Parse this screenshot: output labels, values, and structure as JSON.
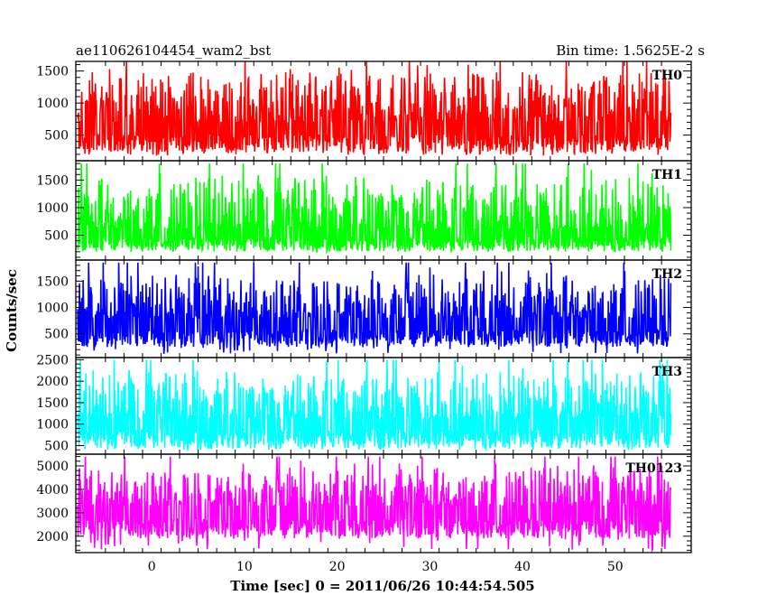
{
  "chart_data": {
    "type": "line",
    "title_left": "ae110626104454_wam2_bst",
    "title_right": "Bin time: 1.5625E-2 s",
    "xlabel": "Time [sec] 0 = 2011/06/26 10:44:54.505",
    "ylabel": "Counts/sec",
    "xlim": [
      -8.2,
      58.2
    ],
    "xticks": [
      0,
      10,
      20,
      30,
      40,
      50
    ],
    "bin_time_s": 0.015625,
    "data_range": [
      -8.0,
      56.0
    ],
    "panels": [
      {
        "name": "TH0",
        "color": "#ff0000",
        "ylim": [
          100,
          1650
        ],
        "yticks": [
          500,
          1000,
          1500
        ],
        "baseline": 230,
        "approx_min": 180,
        "approx_max": 1650,
        "mean_level": 700
      },
      {
        "name": "TH1",
        "color": "#00ff00",
        "ylim": [
          50,
          1850
        ],
        "yticks": [
          500,
          1000,
          1500
        ],
        "baseline": 220,
        "approx_min": 200,
        "approx_max": 1800,
        "mean_level": 620
      },
      {
        "name": "TH2",
        "color": "#0000ff",
        "ylim": [
          50,
          1900
        ],
        "yticks": [
          500,
          1000,
          1500
        ],
        "baseline": 250,
        "approx_min": 120,
        "approx_max": 1850,
        "mean_level": 800
      },
      {
        "name": "TH3",
        "color": "#00ffff",
        "ylim": [
          300,
          2550
        ],
        "yticks": [
          500,
          1000,
          1500,
          2000,
          2500
        ],
        "baseline": 450,
        "approx_min": 400,
        "approx_max": 2500,
        "mean_level": 1150
      },
      {
        "name": "TH0123",
        "color": "#ff00ff",
        "ylim": [
          1300,
          5500
        ],
        "yticks": [
          2000,
          3000,
          4000,
          5000
        ],
        "baseline": 1900,
        "approx_min": 1400,
        "approx_max": 5400,
        "mean_level": 3300
      }
    ]
  }
}
